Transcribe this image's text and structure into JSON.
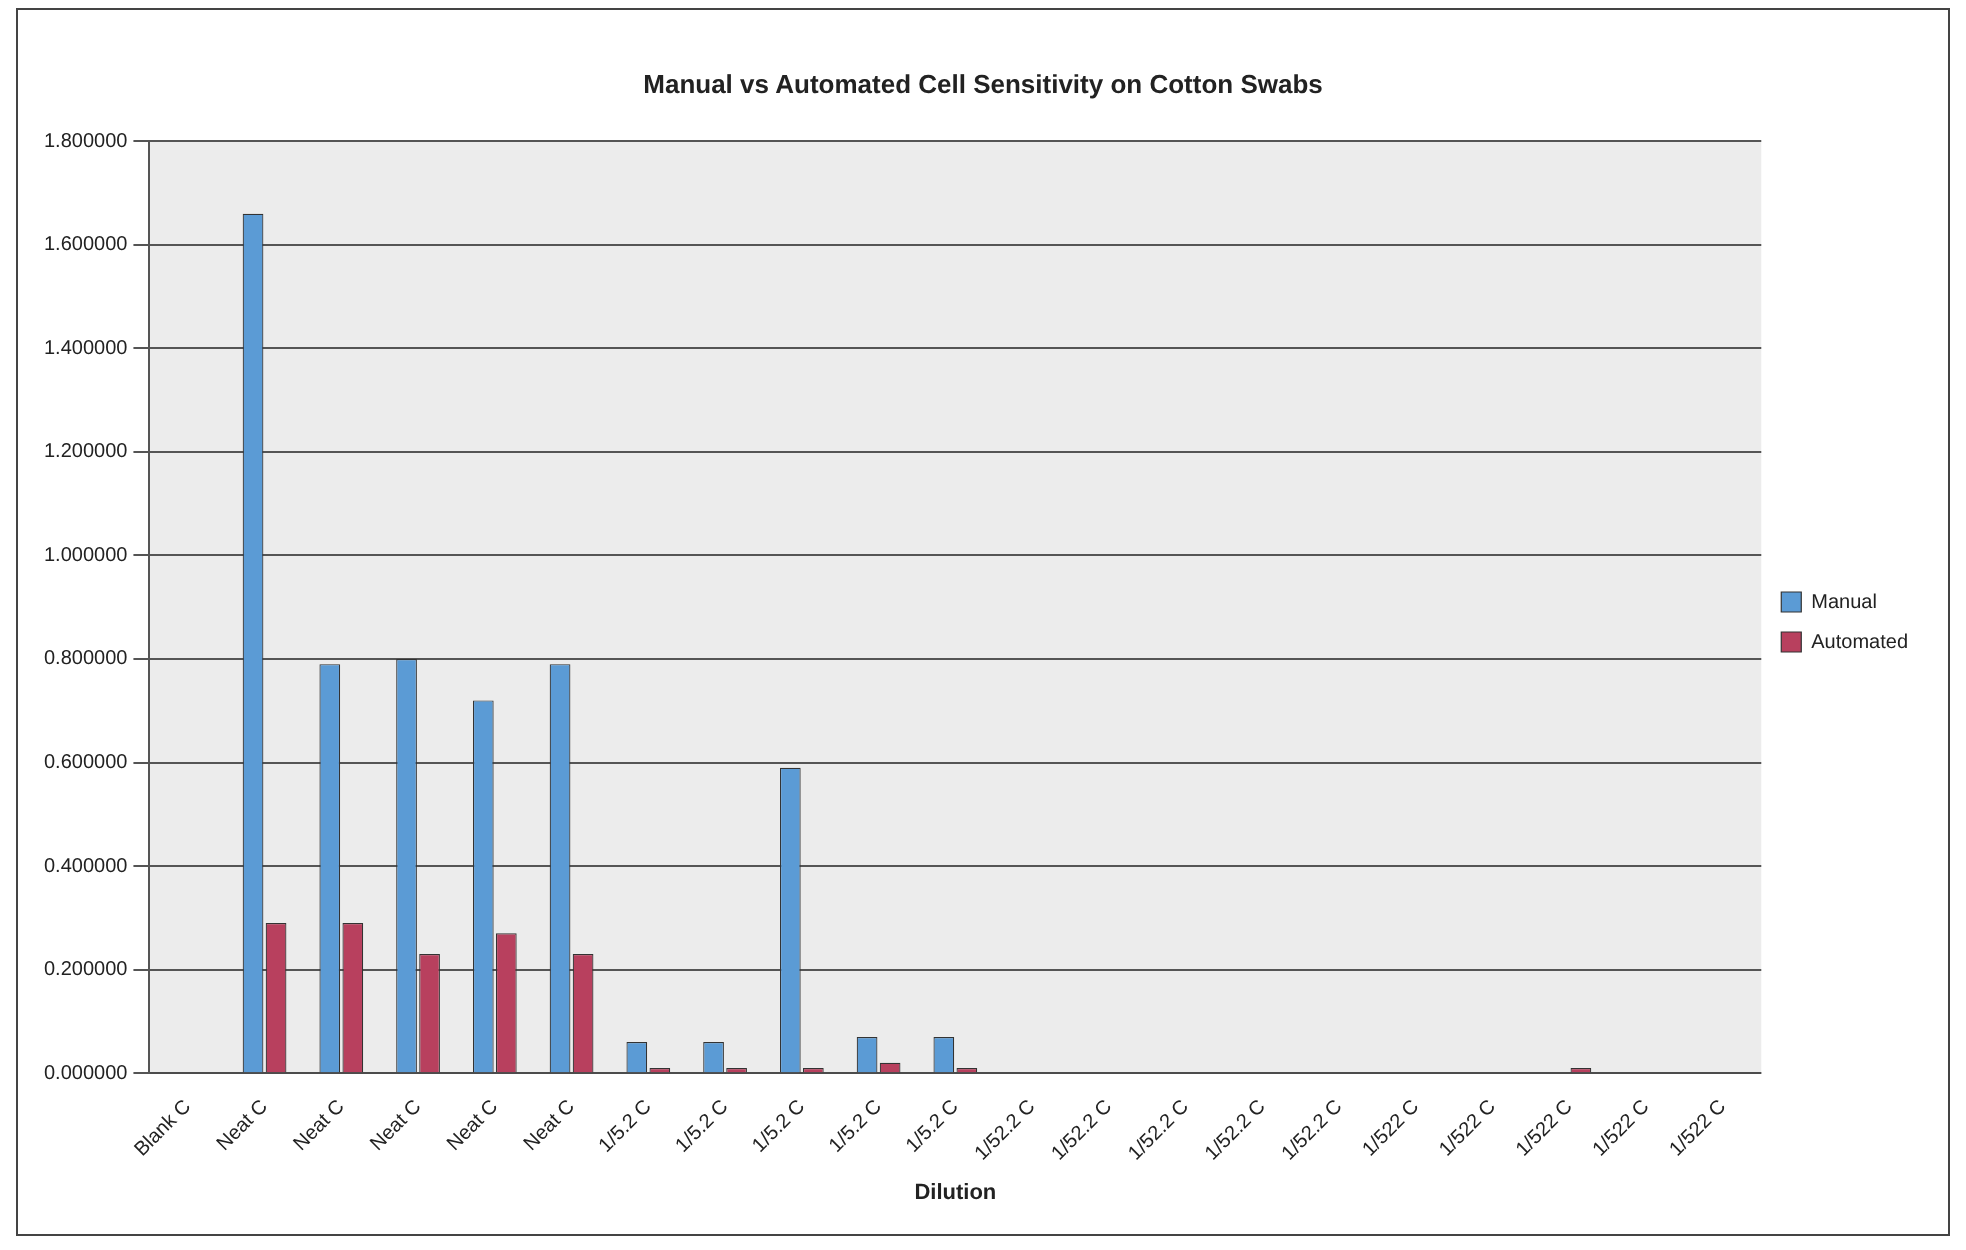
{
  "chart_data": {
    "type": "bar",
    "title": "Manual vs Automated Cell Sensitivity on Cotton Swabs",
    "xlabel": "Dilution",
    "categories": [
      "Blank C",
      "Neat C",
      "Neat C",
      "Neat C",
      "Neat C",
      "Neat C",
      "1/5.2 C",
      "1/5.2 C",
      "1/5.2 C",
      "1/5.2 C",
      "1/5.2 C",
      "1/52.2 C",
      "1/52.2 C",
      "1/52.2 C",
      "1/52.2 C",
      "1/52.2 C",
      "1/522 C",
      "1/522 C",
      "1/522 C",
      "1/522 C",
      "1/522 C"
    ],
    "series": [
      {
        "name": "Manual",
        "color": "#5b9bd5",
        "values": [
          0,
          1.66,
          0.79,
          0.8,
          0.72,
          0.79,
          0.06,
          0.06,
          0.59,
          0.07,
          0.07,
          0,
          0,
          0,
          0,
          0,
          0,
          0,
          0,
          0,
          0
        ]
      },
      {
        "name": "Automated",
        "color": "#b8405e",
        "values": [
          0,
          0.29,
          0.29,
          0.23,
          0.27,
          0.23,
          0.01,
          0.01,
          0.01,
          0.02,
          0.01,
          0,
          0,
          0,
          0,
          0,
          0,
          0,
          0.01,
          0,
          0
        ]
      }
    ],
    "ylim": [
      0,
      1.8
    ],
    "yticks": [
      {
        "value": 0,
        "label": "0.000000"
      },
      {
        "value": 0.2,
        "label": "0.200000"
      },
      {
        "value": 0.4,
        "label": "0.400000"
      },
      {
        "value": 0.6,
        "label": "0.600000"
      },
      {
        "value": 0.8,
        "label": "0.800000"
      },
      {
        "value": 1,
        "label": "1.000000"
      },
      {
        "value": 1.2,
        "label": "1.200000"
      },
      {
        "value": 1.4,
        "label": "1.400000"
      },
      {
        "value": 1.6,
        "label": "1.600000"
      },
      {
        "value": 1.8,
        "label": "1.800000"
      }
    ],
    "grid": "y",
    "legend": "right"
  }
}
